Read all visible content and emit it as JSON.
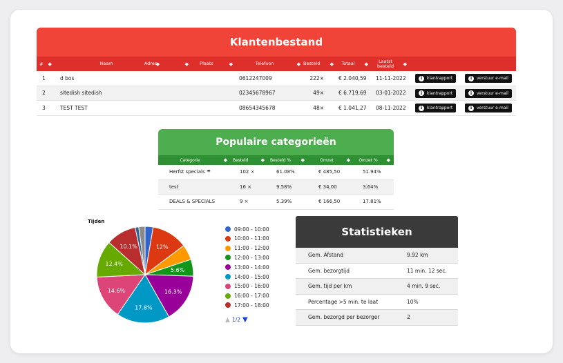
{
  "klanten": {
    "title": "Klantenbestand",
    "columns": [
      "#",
      "Naam",
      "Adres",
      "Plaats",
      "Telefoon",
      "Besteld",
      "Totaal",
      "Laatst besteld"
    ],
    "rows": [
      {
        "nr": "1",
        "naam": "d bos",
        "telefoon": "0612247009",
        "besteld": "222×",
        "totaal": "€ 2.040,59",
        "laatst": "11-11-2022"
      },
      {
        "nr": "2",
        "naam": "sitedish sitedish",
        "telefoon": "02345678967",
        "besteld": "49×",
        "totaal": "€ 6.719,69",
        "laatst": "03-01-2022"
      },
      {
        "nr": "3",
        "naam": "TEST TEST",
        "telefoon": "08654345678",
        "besteld": "48×",
        "totaal": "€ 1.041,27",
        "laatst": "08-11-2022"
      }
    ],
    "btn_rapport": "klantrapport",
    "btn_email": "verstuur e-mail"
  },
  "categorieen": {
    "title": "Populaire categorieën",
    "columns": [
      "Categorie",
      "Besteld",
      "Besteld %",
      "Omzet",
      "Omzet %"
    ],
    "rows": [
      {
        "cat": "Herfst specials ☂",
        "besteld": "102 ×",
        "pct": "61.08%",
        "omzet": "€ 485,50",
        "omzetpct": "51.94%"
      },
      {
        "cat": "test",
        "besteld": "16 ×",
        "pct": "9.58%",
        "omzet": "€ 34,00",
        "omzetpct": "3.64%"
      },
      {
        "cat": "DEALS & SPECIALS",
        "besteld": "9 ×",
        "pct": "5.39%",
        "omzet": "€ 166,50",
        "omzetpct": "17.81%"
      }
    ]
  },
  "tijden": {
    "title": "Tijden",
    "pager": "1/2"
  },
  "chart_data": {
    "type": "pie",
    "title": "Tijden",
    "categories": [
      "09:00 - 10:00",
      "10:00 - 11:00",
      "11:00 - 12:00",
      "12:00 - 13:00",
      "13:00 - 14:00",
      "14:00 - 15:00",
      "15:00 - 16:00",
      "16:00 - 17:00",
      "17:00 - 18:00",
      "",
      ""
    ],
    "values": [
      2.7,
      12.0,
      5.2,
      5.6,
      16.3,
      17.8,
      14.6,
      12.4,
      10.1,
      1.2,
      2.1
    ],
    "labels": [
      "",
      "12%",
      "",
      "5.6%",
      "16.3%",
      "17.8%",
      "14.6%",
      "12.4%",
      "10.1%",
      "",
      ""
    ],
    "colors": [
      "#3366cc",
      "#dc3912",
      "#ff9900",
      "#109618",
      "#990099",
      "#0099c6",
      "#dd4477",
      "#66aa00",
      "#b82e2e",
      "#316395",
      "#8a8a8a"
    ],
    "legend_count": 9,
    "legend_position": "right"
  },
  "stats": {
    "title": "Statistieken",
    "rows": [
      {
        "label": "Gem. Afstand",
        "value": "9.92 km"
      },
      {
        "label": "Gem. bezorgtijd",
        "value": "11 min. 12 sec."
      },
      {
        "label": "Gem. tijd per km",
        "value": "4 min. 9 sec."
      },
      {
        "label": "Percentage >5 min. te laat",
        "value": "10%"
      },
      {
        "label": "Gem. bezorgd per bezorger",
        "value": "2"
      }
    ]
  }
}
